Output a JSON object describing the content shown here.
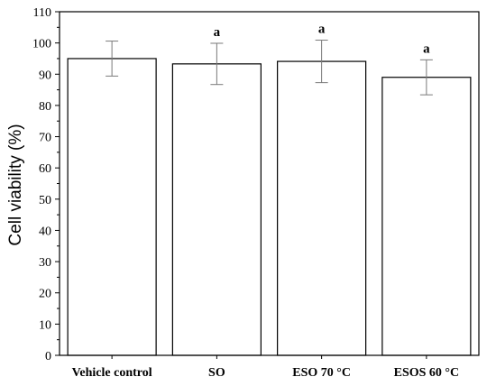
{
  "chart_data": {
    "type": "bar",
    "title": "",
    "xlabel": "",
    "ylabel": "Cell viability (%)",
    "ylim": [
      0,
      110
    ],
    "yticks": [
      0,
      10,
      20,
      30,
      40,
      50,
      60,
      70,
      80,
      90,
      100,
      110
    ],
    "grid": false,
    "categories": [
      "Vehicle control",
      "SO",
      "ESO 70 °C",
      "ESOS 60 °C"
    ],
    "values": [
      95.0,
      93.3,
      94.1,
      89.0
    ],
    "errors": [
      5.6,
      6.6,
      6.8,
      5.6
    ],
    "annotations": [
      "",
      "a",
      "a",
      "a"
    ],
    "colors": {
      "bar_fill": "#ffffff",
      "bar_stroke": "#000000",
      "error_bar": "#7a7a7a"
    }
  }
}
